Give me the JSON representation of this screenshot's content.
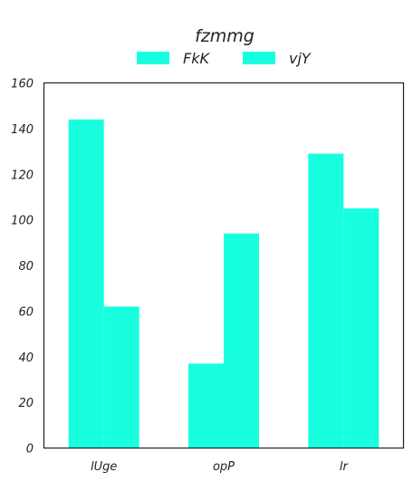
{
  "chart_data": {
    "type": "bar",
    "title": "fzmmg",
    "categories": [
      "lUge",
      "opP",
      "lr"
    ],
    "series": [
      {
        "name": "FkK",
        "values": [
          144,
          37,
          129
        ]
      },
      {
        "name": "vjY",
        "values": [
          62,
          94,
          105
        ]
      }
    ],
    "ylim": [
      0,
      160
    ],
    "yticks": [
      0,
      20,
      40,
      60,
      80,
      100,
      120,
      140,
      160
    ],
    "xlabel": "",
    "ylabel": "",
    "grid": false,
    "legend_position": "top-center",
    "colors": {
      "bar": "#18ffe0",
      "axis": "#222222"
    }
  }
}
